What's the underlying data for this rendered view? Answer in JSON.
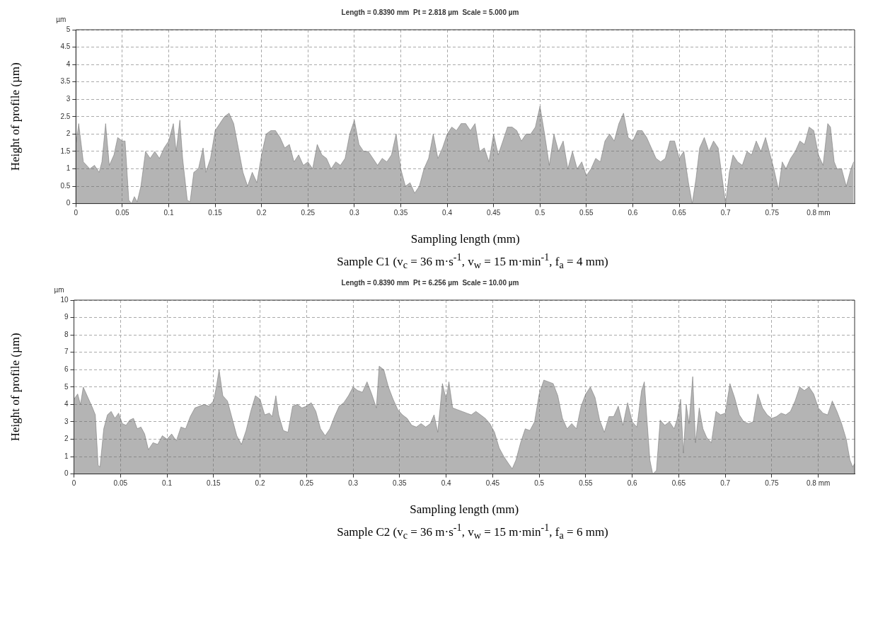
{
  "chart_data": [
    {
      "type": "area",
      "title": "Length = 0.8390 mm  Pt = 2.818 µm  Scale = 5.000 µm",
      "xlabel": "Sampling length (mm)",
      "ylabel": "Height of profile (µm)",
      "annotations": [
        "µm",
        "Sample C1 (v$_{c}$ = 36 m·s$^{-1}$, v$_{w}$ = 15 m·min$^{-1}$, f$_{a}$ = 4 mm)"
      ],
      "x": [
        0,
        0.003,
        0.008,
        0.015,
        0.02,
        0.025,
        0.028,
        0.032,
        0.036,
        0.041,
        0.045,
        0.05,
        0.053,
        0.057,
        0.06,
        0.063,
        0.066,
        0.07,
        0.075,
        0.08,
        0.085,
        0.09,
        0.095,
        0.1,
        0.105,
        0.108,
        0.112,
        0.115,
        0.12,
        0.123,
        0.127,
        0.132,
        0.137,
        0.14,
        0.145,
        0.15,
        0.155,
        0.16,
        0.165,
        0.17,
        0.175,
        0.18,
        0.185,
        0.19,
        0.195,
        0.2,
        0.205,
        0.21,
        0.215,
        0.22,
        0.225,
        0.23,
        0.235,
        0.24,
        0.245,
        0.25,
        0.255,
        0.26,
        0.265,
        0.27,
        0.275,
        0.28,
        0.285,
        0.29,
        0.295,
        0.3,
        0.305,
        0.31,
        0.315,
        0.32,
        0.325,
        0.33,
        0.335,
        0.34,
        0.345,
        0.35,
        0.355,
        0.36,
        0.365,
        0.37,
        0.375,
        0.38,
        0.385,
        0.39,
        0.395,
        0.4,
        0.405,
        0.41,
        0.415,
        0.42,
        0.425,
        0.43,
        0.435,
        0.44,
        0.445,
        0.45,
        0.455,
        0.46,
        0.465,
        0.47,
        0.475,
        0.48,
        0.485,
        0.49,
        0.495,
        0.5,
        0.505,
        0.51,
        0.515,
        0.52,
        0.525,
        0.53,
        0.535,
        0.54,
        0.545,
        0.55,
        0.555,
        0.56,
        0.565,
        0.57,
        0.575,
        0.58,
        0.585,
        0.59,
        0.595,
        0.6,
        0.605,
        0.61,
        0.615,
        0.62,
        0.625,
        0.63,
        0.635,
        0.64,
        0.645,
        0.65,
        0.655,
        0.66,
        0.664,
        0.668,
        0.672,
        0.677,
        0.682,
        0.687,
        0.692,
        0.697,
        0.7,
        0.704,
        0.708,
        0.713,
        0.718,
        0.723,
        0.728,
        0.733,
        0.738,
        0.743,
        0.748,
        0.752,
        0.757,
        0.761,
        0.765,
        0.77,
        0.775,
        0.78,
        0.785,
        0.79,
        0.795,
        0.8,
        0.805,
        0.81,
        0.813,
        0.817,
        0.82,
        0.825,
        0.83,
        0.835,
        0.838
      ],
      "series": [
        {
          "color": "#6a6a6a",
          "values": [
            1.7,
            2.3,
            1.2,
            1.0,
            1.1,
            0.9,
            1.2,
            2.3,
            1.1,
            1.4,
            1.9,
            1.8,
            1.8,
            0.1,
            0.0,
            0.2,
            0.05,
            0.5,
            1.5,
            1.3,
            1.5,
            1.3,
            1.6,
            1.8,
            2.3,
            1.5,
            2.4,
            1.3,
            0.1,
            0.05,
            0.9,
            1.0,
            1.6,
            0.9,
            1.3,
            2.1,
            2.3,
            2.5,
            2.6,
            2.3,
            1.6,
            0.9,
            0.5,
            0.9,
            0.6,
            1.4,
            2.0,
            2.1,
            2.1,
            1.9,
            1.6,
            1.7,
            1.2,
            1.4,
            1.1,
            1.2,
            1.0,
            1.7,
            1.4,
            1.3,
            1.0,
            1.2,
            1.1,
            1.3,
            2.0,
            2.4,
            1.7,
            1.5,
            1.5,
            1.3,
            1.1,
            1.3,
            1.2,
            1.4,
            2.0,
            1.0,
            0.5,
            0.6,
            0.3,
            0.5,
            1.0,
            1.3,
            2.0,
            1.3,
            1.6,
            2.0,
            2.2,
            2.1,
            2.3,
            2.3,
            2.1,
            2.3,
            1.5,
            1.6,
            1.2,
            2.0,
            1.4,
            1.8,
            2.2,
            2.2,
            2.1,
            1.8,
            2.0,
            2.0,
            2.2,
            2.8,
            2.0,
            1.1,
            2.0,
            1.5,
            1.8,
            1.0,
            1.5,
            1.0,
            1.2,
            0.8,
            1.0,
            1.3,
            1.2,
            1.8,
            2.0,
            1.8,
            2.3,
            2.6,
            1.9,
            1.8,
            2.1,
            2.1,
            1.9,
            1.6,
            1.3,
            1.2,
            1.3,
            1.8,
            1.8,
            1.3,
            1.5,
            0.6,
            0.0,
            0.7,
            1.6,
            1.9,
            1.5,
            1.8,
            1.6,
            0.6,
            0.0,
            0.9,
            1.4,
            1.2,
            1.1,
            1.5,
            1.4,
            1.8,
            1.5,
            1.9,
            1.4,
            1.0,
            0.4,
            1.2,
            1.0,
            1.3,
            1.5,
            1.8,
            1.7,
            2.2,
            2.1,
            1.4,
            1.1,
            2.3,
            2.2,
            1.2,
            1.0,
            1.0,
            0.5,
            1.0,
            1.2
          ]
        }
      ],
      "xlim": [
        0,
        0.839
      ],
      "ylim": [
        0,
        5
      ],
      "xticks": [
        0,
        0.05,
        0.1,
        0.15,
        0.2,
        0.25,
        0.3,
        0.35,
        0.4,
        0.45,
        0.5,
        0.55,
        0.6,
        0.65,
        0.7,
        0.75,
        {
          "value": 0.8,
          "label": "0.8 mm"
        }
      ],
      "yticks": [
        0,
        0.5,
        1,
        1.5,
        2,
        2.5,
        3,
        3.5,
        4,
        4.5,
        5
      ],
      "grid": true,
      "line_style": "solid",
      "marker": "none"
    },
    {
      "type": "area",
      "title": "Length = 0.8390 mm  Pt = 6.256 µm  Scale = 10.00 µm",
      "xlabel": "Sampling length (mm)",
      "ylabel": "Height of profile (µm)",
      "annotations": [
        "µm",
        "Sample C2 (v$_{c}$ = 36 m·s$^{-1}$, v$_{w}$ = 15 m·min$^{-1}$, f$_{a}$ = 6 mm)"
      ],
      "x": [
        0,
        0.004,
        0.007,
        0.01,
        0.015,
        0.02,
        0.023,
        0.026,
        0.028,
        0.032,
        0.036,
        0.04,
        0.044,
        0.048,
        0.052,
        0.056,
        0.06,
        0.064,
        0.068,
        0.072,
        0.076,
        0.08,
        0.085,
        0.09,
        0.095,
        0.1,
        0.105,
        0.11,
        0.115,
        0.12,
        0.125,
        0.13,
        0.135,
        0.14,
        0.145,
        0.15,
        0.153,
        0.156,
        0.16,
        0.165,
        0.17,
        0.175,
        0.18,
        0.185,
        0.19,
        0.195,
        0.2,
        0.205,
        0.21,
        0.213,
        0.217,
        0.22,
        0.225,
        0.23,
        0.235,
        0.24,
        0.245,
        0.25,
        0.255,
        0.26,
        0.265,
        0.27,
        0.275,
        0.28,
        0.285,
        0.29,
        0.295,
        0.3,
        0.305,
        0.31,
        0.315,
        0.32,
        0.325,
        0.328,
        0.333,
        0.338,
        0.343,
        0.348,
        0.353,
        0.358,
        0.363,
        0.368,
        0.373,
        0.378,
        0.383,
        0.387,
        0.391,
        0.396,
        0.4,
        0.403,
        0.407,
        0.412,
        0.417,
        0.422,
        0.427,
        0.432,
        0.437,
        0.442,
        0.447,
        0.452,
        0.457,
        0.462,
        0.467,
        0.471,
        0.475,
        0.48,
        0.485,
        0.49,
        0.495,
        0.5,
        0.505,
        0.51,
        0.515,
        0.52,
        0.525,
        0.53,
        0.535,
        0.54,
        0.545,
        0.55,
        0.555,
        0.56,
        0.565,
        0.57,
        0.575,
        0.58,
        0.585,
        0.59,
        0.595,
        0.6,
        0.605,
        0.61,
        0.613,
        0.616,
        0.619,
        0.622,
        0.626,
        0.63,
        0.635,
        0.64,
        0.645,
        0.648,
        0.652,
        0.655,
        0.658,
        0.661,
        0.665,
        0.668,
        0.672,
        0.676,
        0.68,
        0.685,
        0.69,
        0.695,
        0.7,
        0.705,
        0.71,
        0.715,
        0.72,
        0.725,
        0.73,
        0.735,
        0.74,
        0.745,
        0.75,
        0.755,
        0.76,
        0.765,
        0.77,
        0.775,
        0.78,
        0.785,
        0.79,
        0.795,
        0.8,
        0.805,
        0.81,
        0.815,
        0.82,
        0.825,
        0.83,
        0.834,
        0.837,
        0.839
      ],
      "series": [
        {
          "color": "#6a6a6a",
          "values": [
            4.3,
            4.6,
            4.0,
            5.0,
            4.4,
            3.8,
            3.4,
            0.5,
            0.4,
            2.6,
            3.4,
            3.6,
            3.2,
            3.5,
            2.9,
            2.8,
            3.1,
            3.2,
            2.6,
            2.7,
            2.3,
            1.4,
            1.8,
            1.7,
            2.2,
            2.0,
            2.3,
            1.9,
            2.7,
            2.6,
            3.3,
            3.8,
            3.9,
            4.0,
            3.9,
            4.2,
            5.0,
            6.0,
            4.5,
            4.2,
            3.2,
            2.2,
            1.7,
            2.5,
            3.6,
            4.5,
            4.3,
            3.4,
            3.5,
            3.3,
            4.5,
            3.4,
            2.5,
            2.4,
            3.9,
            4.0,
            3.8,
            3.9,
            4.1,
            3.6,
            2.6,
            2.2,
            2.6,
            3.3,
            3.9,
            4.1,
            4.5,
            5.0,
            4.8,
            4.7,
            5.3,
            4.6,
            3.8,
            6.2,
            6.0,
            5.0,
            4.3,
            3.7,
            3.4,
            3.2,
            2.8,
            2.7,
            2.9,
            2.7,
            2.9,
            3.4,
            2.4,
            5.2,
            4.3,
            5.3,
            3.8,
            3.7,
            3.6,
            3.5,
            3.4,
            3.6,
            3.4,
            3.2,
            2.9,
            2.4,
            1.5,
            1.0,
            0.6,
            0.3,
            0.8,
            1.8,
            2.6,
            2.5,
            3.0,
            4.6,
            5.4,
            5.3,
            5.2,
            4.5,
            3.2,
            2.6,
            2.9,
            2.6,
            3.9,
            4.6,
            5.0,
            4.4,
            3.1,
            2.4,
            3.3,
            3.3,
            3.9,
            2.8,
            4.1,
            3.0,
            2.7,
            4.8,
            5.3,
            3.0,
            0.8,
            0.0,
            0.2,
            3.1,
            2.8,
            3.0,
            2.6,
            3.1,
            4.3,
            1.2,
            4.0,
            2.9,
            5.6,
            1.8,
            3.8,
            2.6,
            2.1,
            1.8,
            3.6,
            3.4,
            3.5,
            5.2,
            4.4,
            3.4,
            3.0,
            2.9,
            3.0,
            4.6,
            3.8,
            3.4,
            3.2,
            3.3,
            3.5,
            3.4,
            3.6,
            4.2,
            5.0,
            4.8,
            5.0,
            4.6,
            3.8,
            3.5,
            3.4,
            4.2,
            3.6,
            2.9,
            2.0,
            0.8,
            0.4,
            0.6
          ]
        }
      ],
      "xlim": [
        0,
        0.839
      ],
      "ylim": [
        0,
        10
      ],
      "xticks": [
        0,
        0.05,
        0.1,
        0.15,
        0.2,
        0.25,
        0.3,
        0.35,
        0.4,
        0.45,
        0.5,
        0.55,
        0.6,
        0.65,
        0.7,
        0.75,
        {
          "value": 0.8,
          "label": "0.8 mm"
        }
      ],
      "yticks": [
        0,
        1,
        2,
        3,
        4,
        5,
        6,
        7,
        8,
        9,
        10
      ],
      "grid": true,
      "line_style": "solid",
      "marker": "none"
    }
  ]
}
